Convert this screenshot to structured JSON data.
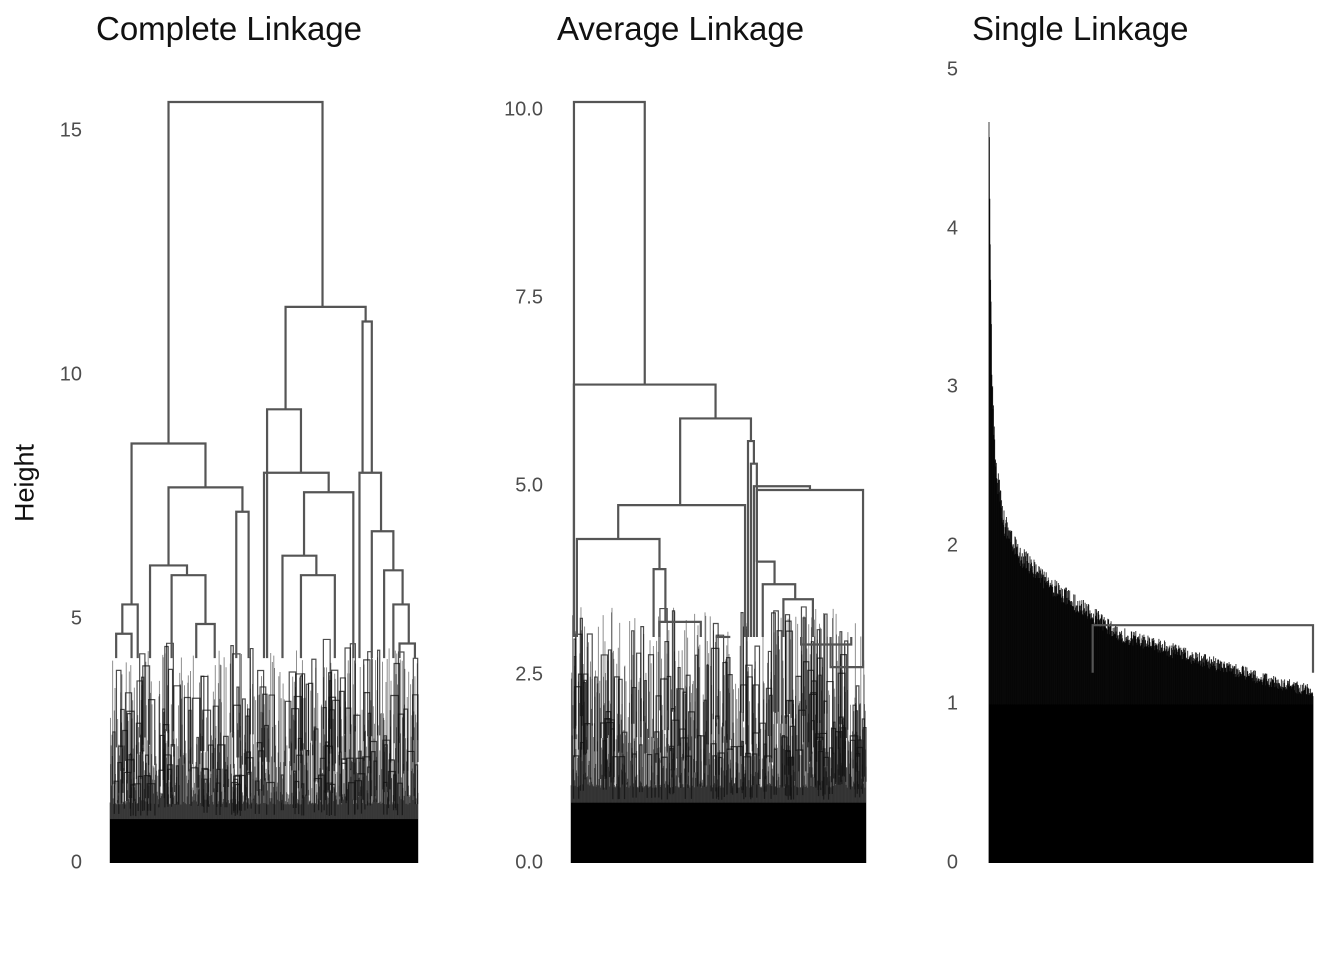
{
  "chart_data": [
    {
      "type": "dendrogram",
      "title": "Complete Linkage",
      "ylabel": "Height",
      "yticks": [
        "0",
        "5",
        "10",
        "15"
      ],
      "ytick_values": [
        0,
        5,
        10,
        15
      ],
      "ylim": [
        0,
        15.6
      ],
      "leaves": 800,
      "merges": [
        {
          "height": 15.6,
          "x": [
            0.19,
            0.69
          ]
        },
        {
          "height": 11.4,
          "x": [
            0.57,
            0.83
          ]
        },
        {
          "height": 11.1,
          "x": [
            0.82,
            0.85
          ]
        },
        {
          "height": 9.3,
          "x": [
            0.51,
            0.62
          ]
        },
        {
          "height": 8.6,
          "x": [
            0.07,
            0.31
          ]
        },
        {
          "height": 8.0,
          "x": [
            0.5,
            0.71
          ]
        },
        {
          "height": 8.0,
          "x": [
            0.81,
            0.88
          ]
        },
        {
          "height": 7.7,
          "x": [
            0.19,
            0.43
          ]
        },
        {
          "height": 7.6,
          "x": [
            0.63,
            0.79
          ]
        },
        {
          "height": 7.2,
          "x": [
            0.41,
            0.45
          ]
        },
        {
          "height": 6.8,
          "x": [
            0.85,
            0.92
          ]
        },
        {
          "height": 6.3,
          "x": [
            0.56,
            0.67
          ]
        },
        {
          "height": 6.1,
          "x": [
            0.13,
            0.25
          ]
        },
        {
          "height": 6.0,
          "x": [
            0.89,
            0.95
          ]
        },
        {
          "height": 5.9,
          "x": [
            0.2,
            0.31
          ]
        },
        {
          "height": 5.9,
          "x": [
            0.62,
            0.73
          ]
        },
        {
          "height": 5.3,
          "x": [
            0.04,
            0.09
          ]
        },
        {
          "height": 5.3,
          "x": [
            0.92,
            0.97
          ]
        },
        {
          "height": 4.9,
          "x": [
            0.28,
            0.34
          ]
        },
        {
          "height": 4.7,
          "x": [
            0.02,
            0.07
          ]
        },
        {
          "height": 4.5,
          "x": [
            0.94,
            0.99
          ]
        }
      ]
    },
    {
      "type": "dendrogram",
      "title": "Average Linkage",
      "yticks": [
        "0.0",
        "2.5",
        "5.0",
        "7.5",
        "10.0"
      ],
      "ytick_values": [
        0,
        2.5,
        5.0,
        7.5,
        10.0
      ],
      "ylim": [
        0,
        10.1
      ],
      "leaves": 800,
      "merges": [
        {
          "height": 10.1,
          "x": [
            0.01,
            0.25
          ]
        },
        {
          "height": 6.35,
          "x": [
            0.01,
            0.49
          ]
        },
        {
          "height": 5.9,
          "x": [
            0.37,
            0.61
          ]
        },
        {
          "height": 5.6,
          "x": [
            0.6,
            0.62
          ]
        },
        {
          "height": 5.3,
          "x": [
            0.61,
            0.63
          ]
        },
        {
          "height": 5.0,
          "x": [
            0.62,
            0.81
          ]
        },
        {
          "height": 4.95,
          "x": [
            0.63,
            0.99
          ]
        },
        {
          "height": 4.75,
          "x": [
            0.16,
            0.59
          ]
        },
        {
          "height": 4.3,
          "x": [
            0.02,
            0.3
          ]
        },
        {
          "height": 4.0,
          "x": [
            0.63,
            0.69
          ]
        },
        {
          "height": 3.9,
          "x": [
            0.28,
            0.32
          ]
        },
        {
          "height": 3.7,
          "x": [
            0.65,
            0.76
          ]
        },
        {
          "height": 3.5,
          "x": [
            0.72,
            0.82
          ]
        },
        {
          "height": 3.2,
          "x": [
            0.3,
            0.44
          ]
        },
        {
          "height": 3.0,
          "x": [
            0.49,
            0.54
          ]
        },
        {
          "height": 2.9,
          "x": [
            0.78,
            0.95
          ]
        },
        {
          "height": 2.6,
          "x": [
            0.88,
            0.99
          ]
        }
      ]
    },
    {
      "type": "dendrogram",
      "title": "Single Linkage",
      "yticks": [
        "0",
        "1",
        "2",
        "3",
        "4",
        "5"
      ],
      "ytick_values": [
        0,
        1,
        2,
        3,
        4,
        5
      ],
      "ylim": [
        0,
        4.8
      ],
      "leaves": 800,
      "profile": [
        {
          "x": 0.0,
          "height": 4.8
        },
        {
          "x": 0.01,
          "height": 3.1
        },
        {
          "x": 0.02,
          "height": 2.6
        },
        {
          "x": 0.05,
          "height": 2.2
        },
        {
          "x": 0.1,
          "height": 2.0
        },
        {
          "x": 0.2,
          "height": 1.8
        },
        {
          "x": 0.3,
          "height": 1.65
        },
        {
          "x": 0.4,
          "height": 1.5
        },
        {
          "x": 0.55,
          "height": 1.4
        },
        {
          "x": 0.7,
          "height": 1.3
        },
        {
          "x": 0.85,
          "height": 1.2
        },
        {
          "x": 1.0,
          "height": 1.12
        }
      ],
      "merges": [
        {
          "height": 1.5,
          "x": [
            0.32,
            1.0
          ]
        }
      ]
    }
  ]
}
